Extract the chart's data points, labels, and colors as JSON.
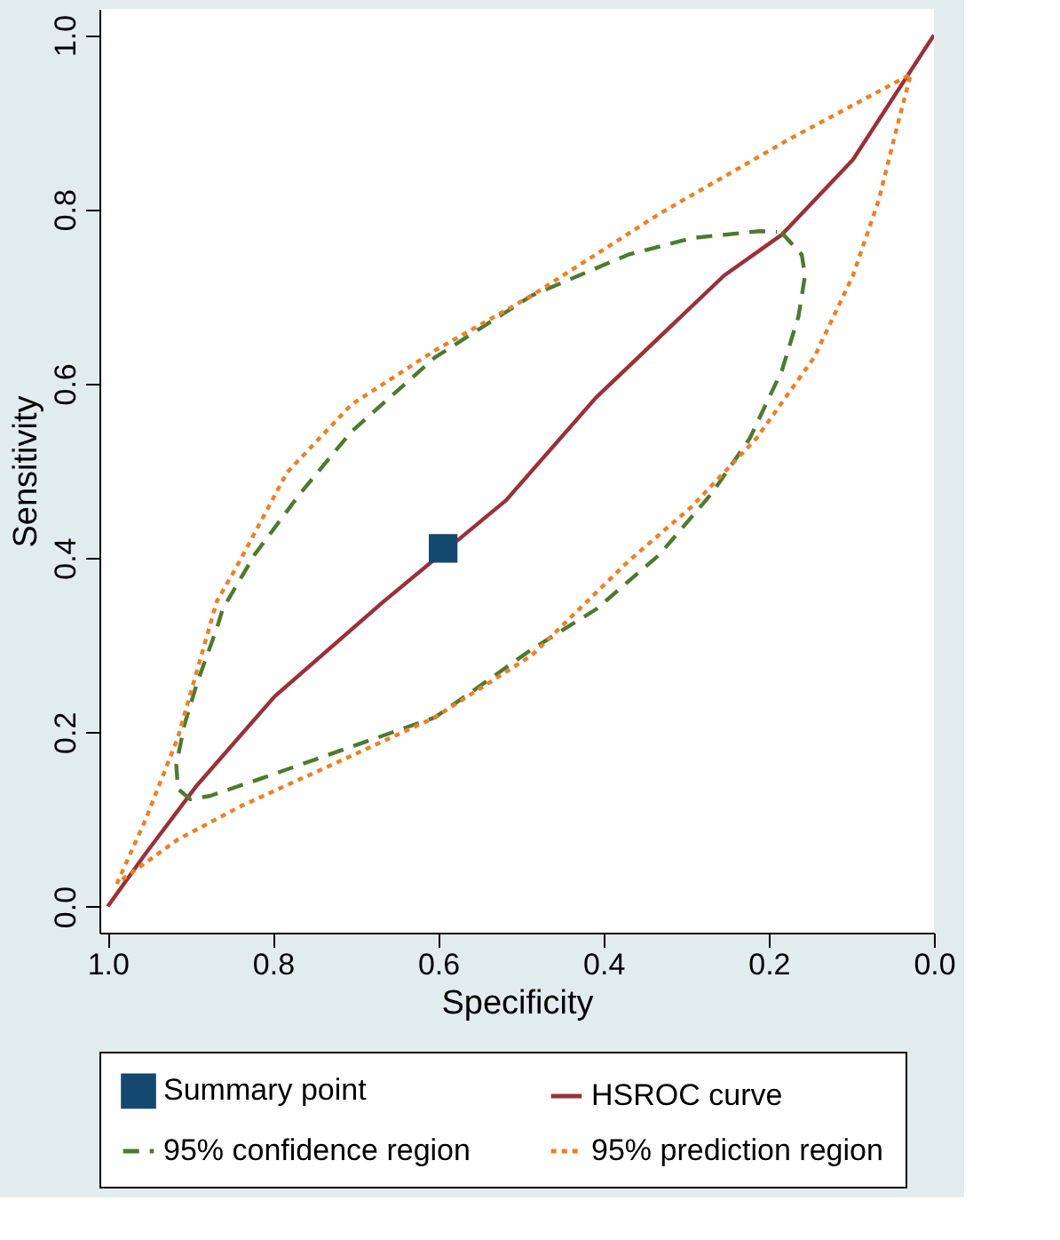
{
  "chart_data": {
    "type": "line",
    "xlabel": "Specificity",
    "ylabel": "Sensitivity",
    "xlim": [
      1.01,
      0.0
    ],
    "ylim": [
      -0.03,
      1.03
    ],
    "xticks": [
      {
        "value": 1.0,
        "label": "1.0"
      },
      0.8,
      0.6,
      0.4,
      0.2,
      {
        "value": 0.0,
        "label": "0.0"
      }
    ],
    "yticks": [
      {
        "value": 0.0,
        "label": "0.0"
      },
      0.2,
      0.4,
      0.6,
      0.8,
      {
        "value": 1.0,
        "label": "1.0"
      }
    ],
    "grid": false,
    "legend": "bottom",
    "series": [
      {
        "name": "Summary point",
        "type": "scatter",
        "marker": "square",
        "color": "#15486f",
        "x": [
          0.594
        ],
        "values": [
          0.411
        ]
      },
      {
        "name": "HSROC curve",
        "line_style": "solid",
        "color": "#9b3038",
        "x": [
          1.0,
          0.954,
          0.892,
          0.798,
          0.666,
          0.518,
          0.409,
          0.254,
          0.184,
          0.098,
          0.0
        ],
        "values": [
          0.0,
          0.061,
          0.139,
          0.241,
          0.35,
          0.466,
          0.584,
          0.724,
          0.771,
          0.857,
          1.0
        ]
      },
      {
        "name": "95% confidence region",
        "line_style": "dashed",
        "color": "#4e7a2e",
        "x": [
          0.184,
          0.16,
          0.156,
          0.164,
          0.184,
          0.223,
          0.269,
          0.332,
          0.409,
          0.487,
          0.557,
          0.604,
          0.721,
          0.814,
          0.876,
          0.9,
          0.915,
          0.917,
          0.907,
          0.892,
          0.868,
          0.861,
          0.822,
          0.767,
          0.705,
          0.604,
          0.487,
          0.37,
          0.293,
          0.211,
          0.19
        ],
        "values": [
          0.773,
          0.748,
          0.724,
          0.677,
          0.615,
          0.537,
          0.474,
          0.404,
          0.341,
          0.295,
          0.248,
          0.217,
          0.178,
          0.147,
          0.127,
          0.123,
          0.135,
          0.163,
          0.209,
          0.256,
          0.319,
          0.341,
          0.404,
          0.474,
          0.545,
          0.63,
          0.701,
          0.748,
          0.767,
          0.775,
          0.774
        ]
      },
      {
        "name": "95% prediction region",
        "line_style": "dotted",
        "color": "#f07f22",
        "x": [
          0.989,
          0.954,
          0.915,
          0.868,
          0.845,
          0.783,
          0.705,
          0.604,
          0.487,
          0.332,
          0.176,
          0.028,
          0.044,
          0.067,
          0.098,
          0.145,
          0.215,
          0.293,
          0.37,
          0.487,
          0.604,
          0.721,
          0.837,
          0.915,
          0.984
        ],
        "values": [
          0.026,
          0.1,
          0.194,
          0.35,
          0.388,
          0.498,
          0.576,
          0.638,
          0.701,
          0.795,
          0.88,
          0.955,
          0.897,
          0.81,
          0.724,
          0.63,
          0.537,
          0.459,
          0.396,
          0.288,
          0.217,
          0.166,
          0.116,
          0.077,
          0.03
        ]
      }
    ]
  }
}
